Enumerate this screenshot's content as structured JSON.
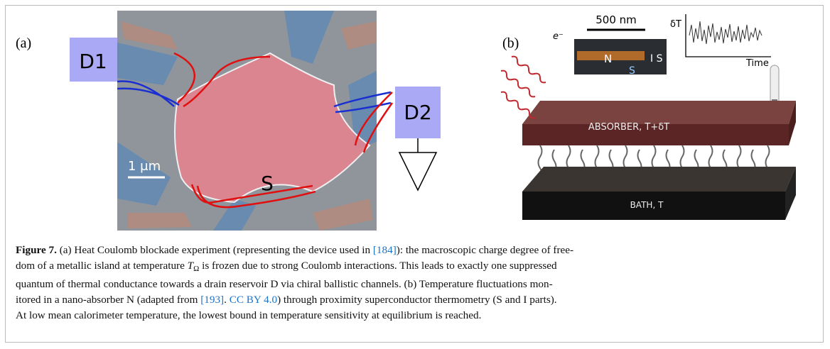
{
  "panel_a": {
    "label": "(a)",
    "left_box": "D1",
    "right_box": "D2",
    "island": "S",
    "scale_bar": "1 μm"
  },
  "panel_b": {
    "label": "(b)",
    "inset_scale": "500 nm",
    "inset_n": "N",
    "inset_s": "S",
    "inset_is": "I S",
    "trace_y": "δT",
    "trace_x": "Time",
    "electron": "e⁻",
    "absorber": "ABSORBER, T+δT",
    "bath": "BATH, T"
  },
  "caption": {
    "lines": [
      [
        {
          "text": "Figure 7.",
          "style": "bold"
        },
        " (a) Heat Coulomb blockade experiment (representing the device used in ",
        {
          "text": "[184]",
          "style": "link"
        },
        "): the macroscopic charge degree of free-"
      ],
      [
        "dom of a metallic island at temperature ",
        {
          "text": "T",
          "style": "italic"
        },
        {
          "text": "Ω",
          "style": "sub"
        },
        " is frozen due to strong Coulomb interactions. This leads to exactly one suppressed"
      ],
      [
        "quantum of thermal conductance towards a drain reservoir D via chiral ballistic channels. (b) Temperature fluctuations mon-"
      ],
      [
        "itored in a nano-absorber N (adapted from ",
        {
          "text": "[193]",
          "style": "link"
        },
        ". ",
        {
          "text": "CC BY 4.0",
          "style": "link"
        },
        ") through proximity superconductor thermometry (S and I parts)."
      ],
      [
        "At low mean calorimeter temperature, the lowest bound in temperature sensitivity at equilibrium is reached."
      ]
    ]
  }
}
